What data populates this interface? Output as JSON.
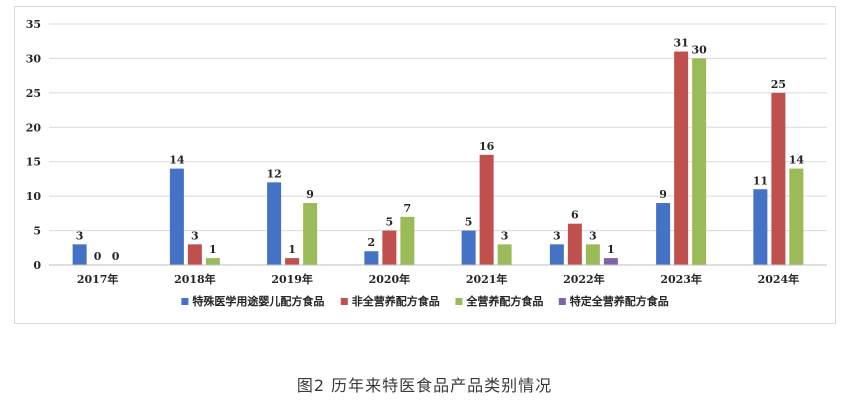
{
  "caption": "图2 历年来特医食品产品类别情况",
  "chart_data": {
    "type": "bar",
    "categories": [
      "2017年",
      "2018年",
      "2019年",
      "2020年",
      "2021年",
      "2022年",
      "2023年",
      "2024年"
    ],
    "series": [
      {
        "name": "特殊医学用途婴儿配方食品",
        "color": "#4472c4",
        "values": [
          3,
          14,
          12,
          2,
          5,
          3,
          9,
          11
        ]
      },
      {
        "name": "非全营养配方食品",
        "color": "#c0504d",
        "values": [
          0,
          3,
          1,
          5,
          16,
          6,
          31,
          25
        ]
      },
      {
        "name": "全营养配方食品",
        "color": "#9bbb59",
        "values": [
          0,
          1,
          9,
          7,
          3,
          3,
          30,
          14
        ]
      },
      {
        "name": "特定全营养配方食品",
        "color": "#8064a2",
        "values": [
          null,
          null,
          null,
          null,
          null,
          1,
          null,
          null
        ]
      }
    ],
    "ylim": [
      0,
      35
    ],
    "yticks": [
      0,
      5,
      10,
      15,
      20,
      25,
      30,
      35
    ],
    "grid": true,
    "legend": "bottom",
    "xlabel": "",
    "ylabel": ""
  }
}
